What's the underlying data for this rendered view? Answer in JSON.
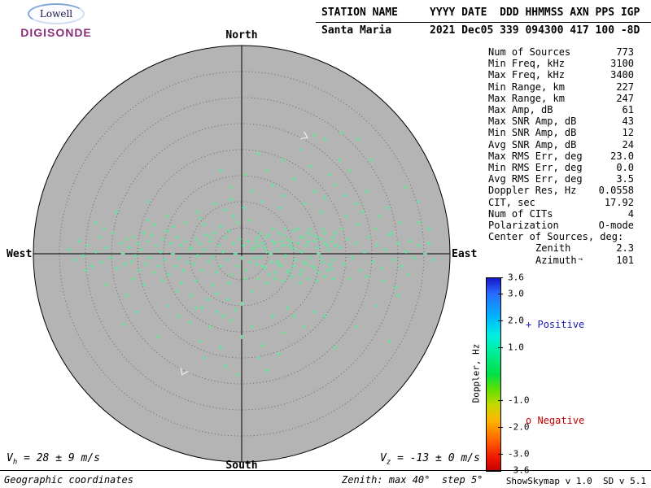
{
  "logo": {
    "line1": "Lowell",
    "line2": "DIGISONDE"
  },
  "header": {
    "row1": "STATION NAME     YYYY DATE  DDD HHMMSS AXN PPS IGP",
    "row2": "Santa Maria      2021 Dec05 339 094300 417 100 -8D"
  },
  "stats": {
    "azimuth_arrow": "↑",
    "lines": [
      {
        "label": "Num of Sources",
        "value": "773",
        "indent": false
      },
      {
        "label": "Min Freq, kHz",
        "value": "3100",
        "indent": false
      },
      {
        "label": "Max Freq, kHz",
        "value": "3400",
        "indent": false
      },
      {
        "label": "Min Range, km",
        "value": "227",
        "indent": false
      },
      {
        "label": "Max Range, km",
        "value": "247",
        "indent": false
      },
      {
        "label": "Max Amp, dB",
        "value": "61",
        "indent": false
      },
      {
        "label": "Max SNR Amp, dB",
        "value": "43",
        "indent": false
      },
      {
        "label": "Min SNR Amp, dB",
        "value": "12",
        "indent": false
      },
      {
        "label": "Avg SNR Amp, dB",
        "value": "24",
        "indent": false
      },
      {
        "label": "Max RMS Err, deg",
        "value": "23.0",
        "indent": false
      },
      {
        "label": "Min RMS Err, deg",
        "value": "0.0",
        "indent": false
      },
      {
        "label": "Avg RMS Err, deg",
        "value": "3.5",
        "indent": false
      },
      {
        "label": "Doppler Res, Hz",
        "value": "0.0558",
        "indent": false
      },
      {
        "label": "CIT, sec",
        "value": "17.92",
        "indent": false
      },
      {
        "label": "Num of CITs",
        "value": "4",
        "indent": false
      },
      {
        "label": "Polarization",
        "value": "O-mode",
        "indent": false
      },
      {
        "label": "Center of Sources, deg:",
        "value": "",
        "indent": false
      },
      {
        "label": "Zenith",
        "value": "2.3",
        "indent": true
      },
      {
        "label": "Azimuth",
        "value": "101",
        "indent": true
      }
    ]
  },
  "skymap": {
    "bg_color": "#b4b4b4",
    "ring_color": "#6a6a6a",
    "axis_color": "#000000",
    "marker_color": "#5ee89a",
    "labels": {
      "north": "North",
      "south": "South",
      "east": "East",
      "west": "West"
    },
    "annotations": [
      {
        "dx": 0.305,
        "dy": 0.563,
        "rot": 25,
        "color": "#ececec"
      },
      {
        "dx": -0.281,
        "dy": -0.57,
        "rot": 115,
        "color": "#ececec"
      }
    ]
  },
  "chart_data": {
    "type": "scatter",
    "projection": "polar-skymap",
    "zenith_max_deg": 40,
    "zenith_step_deg": 5,
    "grid": "dotted-concentric-rings",
    "marker": "+",
    "doppler_range_hz": [
      -3.6,
      3.6
    ],
    "center_of_sources": {
      "zenith_deg": 2.3,
      "azimuth_deg": 101
    },
    "num_sources": 773,
    "points": [
      [
        -0.83,
        0.02
      ],
      [
        -0.8,
        -0.03
      ],
      [
        -0.78,
        0.06
      ],
      [
        -0.76,
        -0.01
      ],
      [
        -0.74,
        0.04
      ],
      [
        -0.72,
        -0.06
      ],
      [
        -0.7,
        0.01
      ],
      [
        -0.68,
        0.08
      ],
      [
        -0.67,
        -0.04
      ],
      [
        -0.65,
        0.03
      ],
      [
        -0.63,
        -0.02
      ],
      [
        -0.62,
        0.1
      ],
      [
        -0.6,
        -0.07
      ],
      [
        -0.58,
        0.05
      ],
      [
        -0.57,
        0
      ],
      [
        -0.56,
        -0.05
      ],
      [
        -0.55,
        0.07
      ],
      [
        -0.66,
        0.12
      ],
      [
        -0.54,
        0.03
      ],
      [
        -0.53,
        -0.04
      ],
      [
        -0.52,
        0.08
      ],
      [
        -0.51,
        -0.01
      ],
      [
        -0.5,
        0.05
      ],
      [
        -0.49,
        -0.08
      ],
      [
        -0.48,
        0.02
      ],
      [
        -0.47,
        0.1
      ],
      [
        -0.46,
        -0.05
      ],
      [
        -0.45,
        0.06
      ],
      [
        -0.44,
        -0.02
      ],
      [
        -0.43,
        0.09
      ],
      [
        -0.42,
        -0.09
      ],
      [
        -0.41,
        0.04
      ],
      [
        -0.4,
        -0.06
      ],
      [
        -0.39,
        0.01
      ],
      [
        -0.38,
        0.07
      ],
      [
        -0.37,
        -0.03
      ],
      [
        -0.36,
        0.11
      ],
      [
        -0.35,
        -0.1
      ],
      [
        -0.34,
        0.05
      ],
      [
        -0.33,
        0
      ],
      [
        -0.32,
        -0.06
      ],
      [
        -0.31,
        0.08
      ],
      [
        -0.3,
        -0.02
      ],
      [
        -0.29,
        0.04
      ],
      [
        -0.28,
        -0.08
      ],
      [
        -0.27,
        0.06
      ],
      [
        -0.26,
        -0.04
      ],
      [
        -0.25,
        0.02
      ],
      [
        -0.52,
        -0.12
      ],
      [
        -0.47,
        -0.15
      ],
      [
        -0.42,
        0.14
      ],
      [
        -0.38,
        -0.13
      ],
      [
        -0.33,
        0.13
      ],
      [
        -0.29,
        -0.14
      ],
      [
        -0.45,
        0.16
      ],
      [
        -0.36,
        0.18
      ],
      [
        -0.31,
        -0.18
      ],
      [
        -0.27,
        0.15
      ],
      [
        -0.24,
        0.03
      ],
      [
        -0.23,
        -0.05
      ],
      [
        -0.22,
        0.07
      ],
      [
        -0.21,
        -0.01
      ],
      [
        -0.2,
        0.05
      ],
      [
        -0.19,
        -0.08
      ],
      [
        -0.18,
        0.02
      ],
      [
        -0.17,
        0.09
      ],
      [
        -0.16,
        -0.04
      ],
      [
        -0.15,
        0.06
      ],
      [
        -0.14,
        -0.02
      ],
      [
        -0.13,
        0.1
      ],
      [
        -0.12,
        -0.09
      ],
      [
        -0.11,
        0.04
      ],
      [
        -0.1,
        -0.06
      ],
      [
        -0.09,
        0.01
      ],
      [
        -0.08,
        0.08
      ],
      [
        -0.07,
        -0.03
      ],
      [
        -0.06,
        0.11
      ],
      [
        -0.05,
        -0.1
      ],
      [
        -0.04,
        0.05
      ],
      [
        -0.03,
        0
      ],
      [
        -0.02,
        -0.06
      ],
      [
        -0.01,
        0.07
      ],
      [
        0,
        -0.02
      ],
      [
        0.01,
        0.04
      ],
      [
        0.02,
        -0.08
      ],
      [
        0.03,
        0.06
      ],
      [
        0.04,
        -0.04
      ],
      [
        0.05,
        0.02
      ],
      [
        -0.22,
        -0.13
      ],
      [
        -0.18,
        0.14
      ],
      [
        -0.14,
        -0.15
      ],
      [
        -0.1,
        0.13
      ],
      [
        -0.06,
        -0.14
      ],
      [
        -0.02,
        0.15
      ],
      [
        0.02,
        -0.12
      ],
      [
        -0.2,
        0.17
      ],
      [
        -0.12,
        -0.19
      ],
      [
        -0.04,
        0.18
      ],
      [
        -0.16,
        -0.22
      ],
      [
        -0.08,
        0.21
      ],
      [
        0,
        -0.24
      ],
      [
        -0.19,
        -0.26
      ],
      [
        -0.09,
        -0.3
      ],
      [
        -0.03,
        -0.27
      ],
      [
        -0.13,
        0.24
      ],
      [
        -0.05,
        0.26
      ],
      [
        0.01,
        0.22
      ],
      [
        -0.24,
        -0.2
      ],
      [
        -0.21,
        0.2
      ],
      [
        -0.07,
        -0.22
      ],
      [
        0.04,
        0.16
      ],
      [
        0.05,
        -0.18
      ],
      [
        -0.15,
        0.08
      ],
      [
        0.06,
        0.03
      ],
      [
        0.07,
        -0.05
      ],
      [
        0.08,
        0.08
      ],
      [
        0.09,
        -0.02
      ],
      [
        0.1,
        0.05
      ],
      [
        0.11,
        -0.07
      ],
      [
        0.12,
        0.01
      ],
      [
        0.13,
        0.09
      ],
      [
        0.14,
        -0.04
      ],
      [
        0.15,
        0.06
      ],
      [
        0.16,
        -0.09
      ],
      [
        0.17,
        0.02
      ],
      [
        0.18,
        0.1
      ],
      [
        0.19,
        -0.06
      ],
      [
        0.2,
        0.04
      ],
      [
        0.21,
        -0.01
      ],
      [
        0.22,
        0.07
      ],
      [
        0.23,
        -0.08
      ],
      [
        0.24,
        0.03
      ],
      [
        0.25,
        0.11
      ],
      [
        0.26,
        -0.03
      ],
      [
        0.27,
        0.05
      ],
      [
        0.28,
        -0.1
      ],
      [
        0.29,
        0.01
      ],
      [
        0.3,
        0.08
      ],
      [
        0.31,
        -0.05
      ],
      [
        0.32,
        0.06
      ],
      [
        0.33,
        -0.02
      ],
      [
        0.34,
        0.09
      ],
      [
        0.35,
        -0.07
      ],
      [
        0.36,
        0.03
      ],
      [
        0.37,
        0
      ],
      [
        0.38,
        0.07
      ],
      [
        0.39,
        -0.04
      ],
      [
        0.4,
        0.05
      ],
      [
        0.41,
        -0.08
      ],
      [
        0.42,
        0.02
      ],
      [
        0.43,
        0.06
      ],
      [
        0.44,
        -0.03
      ],
      [
        0.45,
        0.04
      ],
      [
        0.06,
        -0.02
      ],
      [
        0.08,
        0.04
      ],
      [
        0.1,
        -0.06
      ],
      [
        0.12,
        0.08
      ],
      [
        0.14,
        0
      ],
      [
        0.16,
        0.05
      ],
      [
        0.18,
        -0.05
      ],
      [
        0.2,
        0.09
      ],
      [
        0.22,
        -0.09
      ],
      [
        0.24,
        0.06
      ],
      [
        0.26,
        0.02
      ],
      [
        0.28,
        0.08
      ],
      [
        0.3,
        -0.04
      ],
      [
        0.32,
        0.1
      ],
      [
        0.34,
        -0.06
      ],
      [
        0.36,
        0.08
      ],
      [
        0.38,
        -0.02
      ],
      [
        0.4,
        0.1
      ],
      [
        0.42,
        -0.05
      ],
      [
        0.44,
        0.08
      ],
      [
        0.07,
        0.06
      ],
      [
        0.09,
        0.1
      ],
      [
        0.11,
        0.03
      ],
      [
        0.13,
        -0.1
      ],
      [
        0.15,
        0.12
      ],
      [
        0.17,
        -0.04
      ],
      [
        0.19,
        0.06
      ],
      [
        0.21,
        0.12
      ],
      [
        0.23,
        0.04
      ],
      [
        0.25,
        -0.06
      ],
      [
        0.27,
        0.12
      ],
      [
        0.29,
        -0.08
      ],
      [
        0.31,
        0.04
      ],
      [
        0.33,
        0.12
      ],
      [
        0.35,
        0.06
      ],
      [
        0.37,
        -0.09
      ],
      [
        0.39,
        0.12
      ],
      [
        0.41,
        0.04
      ],
      [
        0.43,
        -0.07
      ],
      [
        0.45,
        0.1
      ],
      [
        0.08,
        -0.12
      ],
      [
        0.12,
        -0.14
      ],
      [
        0.16,
        -0.12
      ],
      [
        0.2,
        -0.13
      ],
      [
        0.24,
        -0.11
      ],
      [
        0.28,
        -0.14
      ],
      [
        0.32,
        -0.12
      ],
      [
        0.36,
        -0.13
      ],
      [
        0.4,
        -0.11
      ],
      [
        0.44,
        -0.12
      ],
      [
        0.47,
        0.03
      ],
      [
        0.49,
        -0.05
      ],
      [
        0.51,
        0.07
      ],
      [
        0.53,
        -0.02
      ],
      [
        0.55,
        0.05
      ],
      [
        0.57,
        -0.08
      ],
      [
        0.59,
        0.01
      ],
      [
        0.61,
        0.08
      ],
      [
        0.63,
        -0.04
      ],
      [
        0.65,
        0.04
      ],
      [
        0.67,
        -0.07
      ],
      [
        0.69,
        0.02
      ],
      [
        0.71,
        0.09
      ],
      [
        0.73,
        -0.03
      ],
      [
        0.75,
        0.05
      ],
      [
        0.77,
        -0.06
      ],
      [
        0.79,
        0.01
      ],
      [
        0.81,
        0.06
      ],
      [
        0.83,
        -0.02
      ],
      [
        0.85,
        0.04
      ],
      [
        0.88,
        0
      ],
      [
        0.9,
        0.05
      ],
      [
        0.92,
        -0.03
      ],
      [
        0.48,
        0.12
      ],
      [
        0.52,
        -0.12
      ],
      [
        0.56,
        0.14
      ],
      [
        0.6,
        -0.11
      ],
      [
        0.64,
        0.12
      ],
      [
        0.68,
        -0.13
      ],
      [
        0.72,
        0.1
      ],
      [
        0.76,
        0.15
      ],
      [
        0.5,
        0.18
      ],
      [
        0.58,
        0.2
      ],
      [
        0.66,
        0.18
      ],
      [
        0.74,
        -0.16
      ],
      [
        0.1,
        0.25
      ],
      [
        0.2,
        0.28
      ],
      [
        0.3,
        0.24
      ],
      [
        0.35,
        0.3
      ],
      [
        0.15,
        0.33
      ],
      [
        0.25,
        0.36
      ],
      [
        0.4,
        0.27
      ],
      [
        0.45,
        0.33
      ],
      [
        0.05,
        0.3
      ],
      [
        -0.05,
        0.32
      ],
      [
        0.33,
        0.42
      ],
      [
        0.2,
        0.45
      ],
      [
        0.12,
        0.4
      ],
      [
        0.42,
        0.38
      ],
      [
        0.5,
        0.28
      ],
      [
        0.55,
        0.24
      ],
      [
        0.28,
        0.5
      ],
      [
        0.08,
        0.48
      ],
      [
        -0.1,
        0.4
      ],
      [
        0.47,
        0.45
      ],
      [
        0.38,
        0.2
      ],
      [
        0.18,
        0.22
      ],
      [
        0.02,
        0.38
      ],
      [
        0.6,
        0.3
      ],
      [
        0.52,
        0.4
      ],
      [
        -0.05,
        -0.32
      ],
      [
        0.05,
        -0.35
      ],
      [
        0.15,
        -0.3
      ],
      [
        -0.15,
        -0.35
      ],
      [
        0,
        -0.4
      ],
      [
        0.1,
        -0.44
      ],
      [
        -0.1,
        -0.45
      ],
      [
        0.2,
        -0.38
      ],
      [
        -0.2,
        -0.42
      ],
      [
        0.25,
        -0.3
      ],
      [
        -0.25,
        -0.33
      ],
      [
        0.08,
        -0.5
      ],
      [
        -0.08,
        -0.54
      ],
      [
        0.18,
        -0.48
      ],
      [
        -0.18,
        -0.5
      ],
      [
        0.3,
        -0.35
      ],
      [
        -0.3,
        -0.3
      ],
      [
        0.35,
        -0.28
      ],
      [
        -0.02,
        -0.58
      ],
      [
        0.12,
        -0.56
      ],
      [
        -0.35,
        -0.25
      ],
      [
        0.4,
        -0.3
      ],
      [
        -0.12,
        -0.28
      ],
      [
        0.22,
        -0.26
      ],
      [
        -0.22,
        -0.26
      ],
      [
        0.65,
        -0.25
      ],
      [
        0.75,
        -0.2
      ],
      [
        0.85,
        0.15
      ],
      [
        -0.6,
        0.2
      ],
      [
        -0.7,
        0.15
      ],
      [
        -0.55,
        -0.2
      ],
      [
        -0.65,
        -0.15
      ],
      [
        0.55,
        -0.35
      ],
      [
        0.45,
        -0.45
      ],
      [
        -0.4,
        -0.4
      ],
      [
        -0.45,
        0.25
      ],
      [
        0.7,
        0.22
      ],
      [
        0.8,
        -0.1
      ],
      [
        -0.75,
        -0.08
      ],
      [
        0.9,
        0.12
      ],
      [
        0.56,
        0.55
      ],
      [
        0.48,
        0.58
      ],
      [
        0.62,
        0.45
      ],
      [
        0.4,
        0.55
      ],
      [
        0.79,
        0.32
      ],
      [
        0.85,
        0.25
      ],
      [
        0.71,
        -0.42
      ],
      [
        -0.57,
        -0.34
      ],
      [
        -0.5,
        -0.28
      ],
      [
        0.35,
        0.57
      ]
    ]
  },
  "colorbar": {
    "title": "Doppler, Hz",
    "min": -3.6,
    "max": 3.6,
    "ticks": [
      {
        "v": 3.6,
        "label": "3.6"
      },
      {
        "v": 3.0,
        "label": "3.0"
      },
      {
        "v": 2.0,
        "label": "2.0"
      },
      {
        "v": 1.0,
        "label": "1.0"
      },
      {
        "v": -1.0,
        "label": "-1.0"
      },
      {
        "v": -2.0,
        "label": "-2.0"
      },
      {
        "v": -3.0,
        "label": "-3.0"
      },
      {
        "v": -3.6,
        "label": "-3.6"
      }
    ],
    "stops": [
      "#1515c8 0%",
      "#2a6bff 8%",
      "#00b4ff 20%",
      "#00f0e0 30%",
      "#00eb8c 40%",
      "#00e045 50%",
      "#63e000 58%",
      "#c8d700 66%",
      "#ffb400 74%",
      "#ff6400 84%",
      "#f01800 93%",
      "#c30000 100%"
    ]
  },
  "legend": {
    "positive": {
      "marker": "+",
      "label": "Positive",
      "color": "#1a1ab8"
    },
    "negative": {
      "marker": "o",
      "label": "Negative",
      "color": "#c40000"
    }
  },
  "footer": {
    "vh": {
      "v": "V",
      "sub": "h",
      "rest": " = 28 ± 9 m/s"
    },
    "vz": {
      "v": "V",
      "sub": "z",
      "rest": " = -13 ± 0 m/s"
    },
    "coords": "Geographic coordinates",
    "zenith_note": "Zenith: max 40°  step 5°",
    "version": "ShowSkymap v 1.0  SD v 5.1"
  }
}
